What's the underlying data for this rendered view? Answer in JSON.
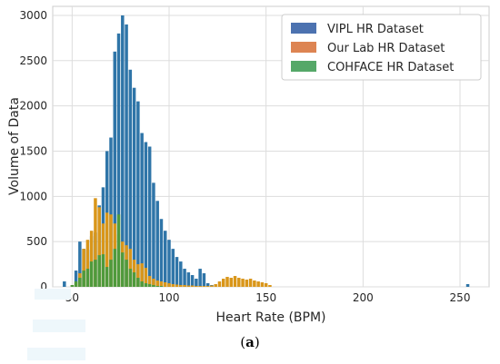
{
  "caption": {
    "open": "(",
    "letter": "a",
    "close": ")"
  },
  "chart_data": {
    "type": "bar",
    "xlabel": "Heart Rate (BPM)",
    "ylabel": "Volume of Data",
    "xlim": [
      40,
      265
    ],
    "ylim": [
      0,
      3100
    ],
    "xticks": [
      50,
      100,
      150,
      200,
      250
    ],
    "yticks": [
      0,
      500,
      1000,
      1500,
      2000,
      2500,
      3000
    ],
    "grid": true,
    "legend_position": "top-right",
    "bin_width": 2,
    "series": [
      {
        "name": "VIPL HR Dataset",
        "color": "#4c72b0",
        "bar_color": "#2f75a8",
        "x": [
          46,
          52,
          54,
          56,
          58,
          60,
          62,
          64,
          66,
          68,
          70,
          72,
          74,
          76,
          78,
          80,
          82,
          84,
          86,
          88,
          90,
          92,
          94,
          96,
          98,
          100,
          102,
          104,
          106,
          108,
          110,
          112,
          114,
          116,
          118,
          120,
          122,
          254
        ],
        "values": [
          60,
          180,
          500,
          420,
          410,
          560,
          600,
          900,
          1100,
          1500,
          1650,
          2600,
          2800,
          3000,
          2900,
          2400,
          2200,
          2050,
          1700,
          1600,
          1550,
          1150,
          950,
          750,
          620,
          520,
          420,
          330,
          280,
          200,
          160,
          130,
          90,
          200,
          150,
          40,
          20,
          30
        ]
      },
      {
        "name": "Our Lab HR Dataset",
        "color": "#dd8452",
        "bar_color": "#d9961a",
        "x": [
          52,
          54,
          56,
          58,
          60,
          62,
          64,
          66,
          68,
          70,
          72,
          74,
          76,
          78,
          80,
          82,
          84,
          86,
          88,
          90,
          92,
          94,
          96,
          98,
          100,
          102,
          104,
          106,
          108,
          110,
          112,
          114,
          116,
          118,
          120,
          122,
          124,
          126,
          128,
          130,
          132,
          134,
          136,
          138,
          140,
          142,
          144,
          146,
          148,
          150,
          152
        ],
        "values": [
          40,
          150,
          420,
          520,
          620,
          980,
          880,
          700,
          820,
          800,
          700,
          580,
          500,
          460,
          420,
          300,
          250,
          260,
          210,
          120,
          90,
          70,
          60,
          50,
          40,
          30,
          25,
          20,
          20,
          15,
          15,
          10,
          10,
          10,
          10,
          15,
          30,
          60,
          90,
          110,
          100,
          120,
          100,
          90,
          80,
          90,
          70,
          60,
          50,
          40,
          20
        ]
      },
      {
        "name": "COHFACE HR Dataset",
        "color": "#55a868",
        "bar_color": "#4f9a3c",
        "x": [
          50,
          52,
          54,
          56,
          58,
          60,
          62,
          64,
          66,
          68,
          70,
          72,
          74,
          76,
          78,
          80,
          82,
          84,
          86,
          88,
          90,
          92,
          94,
          96
        ],
        "values": [
          20,
          60,
          100,
          180,
          200,
          280,
          300,
          350,
          360,
          220,
          300,
          420,
          800,
          380,
          300,
          200,
          160,
          100,
          60,
          40,
          30,
          20,
          10,
          10
        ]
      }
    ]
  }
}
